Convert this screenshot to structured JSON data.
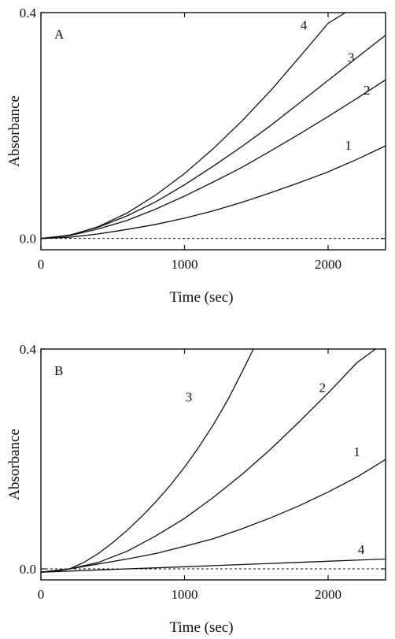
{
  "chart_data": [
    {
      "type": "line",
      "panel_label": "A",
      "xlabel": "Time (sec)",
      "ylabel": "Absorbance",
      "xlim": [
        0,
        2400
      ],
      "ylim": [
        -0.02,
        0.4
      ],
      "x_ticks": [
        {
          "value": 0,
          "label": "0"
        },
        {
          "value": 1000,
          "label": "1000"
        },
        {
          "value": 2000,
          "label": "2000"
        }
      ],
      "y_ticks": [
        {
          "value": 0.0,
          "label": "0.0"
        },
        {
          "value": 0.4,
          "label": "0.4"
        }
      ],
      "baseline": {
        "value": 0.0,
        "style": "dashed"
      },
      "series": [
        {
          "label": "1",
          "x": [
            0,
            200,
            400,
            600,
            800,
            1000,
            1200,
            1400,
            1600,
            1800,
            2000,
            2200,
            2400
          ],
          "y": [
            0.0,
            0.002,
            0.008,
            0.016,
            0.025,
            0.036,
            0.049,
            0.064,
            0.081,
            0.099,
            0.118,
            0.14,
            0.164
          ]
        },
        {
          "label": "2",
          "x": [
            0,
            200,
            400,
            600,
            800,
            1000,
            1200,
            1400,
            1600,
            1800,
            2000,
            2200,
            2400
          ],
          "y": [
            0.0,
            0.005,
            0.017,
            0.032,
            0.052,
            0.075,
            0.1,
            0.126,
            0.155,
            0.185,
            0.216,
            0.248,
            0.281
          ]
        },
        {
          "label": "3",
          "x": [
            0,
            200,
            400,
            600,
            800,
            1000,
            1200,
            1400,
            1600,
            1800,
            2000,
            2200,
            2400
          ],
          "y": [
            0.0,
            0.006,
            0.02,
            0.04,
            0.065,
            0.095,
            0.128,
            0.163,
            0.2,
            0.24,
            0.28,
            0.32,
            0.36
          ]
        },
        {
          "label": "4",
          "x": [
            0,
            200,
            400,
            600,
            800,
            1000,
            1200,
            1400,
            1600,
            1800,
            2000,
            2120
          ],
          "y": [
            0.0,
            0.005,
            0.021,
            0.045,
            0.077,
            0.115,
            0.159,
            0.208,
            0.262,
            0.321,
            0.381,
            0.4
          ]
        }
      ],
      "curve_labels": [
        {
          "text": "1",
          "x": 2140,
          "y": 0.157
        },
        {
          "text": "2",
          "x": 2270,
          "y": 0.255
        },
        {
          "text": "3",
          "x": 2160,
          "y": 0.313
        },
        {
          "text": "4",
          "x": 1830,
          "y": 0.37
        }
      ]
    },
    {
      "type": "line",
      "panel_label": "B",
      "xlabel": "Time (sec)",
      "ylabel": "Absorbance",
      "xlim": [
        0,
        2400
      ],
      "ylim": [
        -0.02,
        0.4
      ],
      "x_ticks": [
        {
          "value": 0,
          "label": "0"
        },
        {
          "value": 1000,
          "label": "1000"
        },
        {
          "value": 2000,
          "label": "2000"
        }
      ],
      "y_ticks": [
        {
          "value": 0.0,
          "label": "0.0"
        },
        {
          "value": 0.4,
          "label": "0.4"
        }
      ],
      "baseline": {
        "value": 0.0,
        "style": "dashed"
      },
      "series": [
        {
          "label": "1",
          "x": [
            0,
            200,
            400,
            600,
            800,
            1000,
            1200,
            1400,
            1600,
            1800,
            2000,
            2200,
            2400
          ],
          "y": [
            -0.006,
            0.0,
            0.009,
            0.018,
            0.028,
            0.041,
            0.055,
            0.073,
            0.093,
            0.115,
            0.14,
            0.167,
            0.199
          ]
        },
        {
          "label": "2",
          "x": [
            0,
            200,
            400,
            600,
            800,
            1000,
            1200,
            1400,
            1600,
            1800,
            2000,
            2200,
            2330
          ],
          "y": [
            -0.006,
            0.0,
            0.012,
            0.032,
            0.06,
            0.092,
            0.13,
            0.172,
            0.218,
            0.268,
            0.32,
            0.375,
            0.4
          ]
        },
        {
          "label": "3",
          "x": [
            0,
            100,
            200,
            300,
            400,
            500,
            600,
            700,
            800,
            900,
            1000,
            1100,
            1200,
            1300,
            1400,
            1480
          ],
          "y": [
            -0.006,
            -0.004,
            0.0,
            0.012,
            0.028,
            0.048,
            0.07,
            0.095,
            0.122,
            0.152,
            0.185,
            0.222,
            0.262,
            0.307,
            0.358,
            0.4
          ]
        },
        {
          "label": "4",
          "x": [
            0,
            200,
            400,
            600,
            800,
            1000,
            1200,
            1400,
            1600,
            1800,
            2000,
            2200,
            2400
          ],
          "y": [
            -0.006,
            -0.004,
            -0.002,
            0.0,
            0.002,
            0.004,
            0.006,
            0.008,
            0.01,
            0.012,
            0.014,
            0.016,
            0.018
          ]
        }
      ],
      "curve_labels": [
        {
          "text": "1",
          "x": 2200,
          "y": 0.205
        },
        {
          "text": "2",
          "x": 1960,
          "y": 0.322
        },
        {
          "text": "3",
          "x": 1030,
          "y": 0.305
        },
        {
          "text": "4",
          "x": 2230,
          "y": 0.027
        }
      ]
    }
  ]
}
